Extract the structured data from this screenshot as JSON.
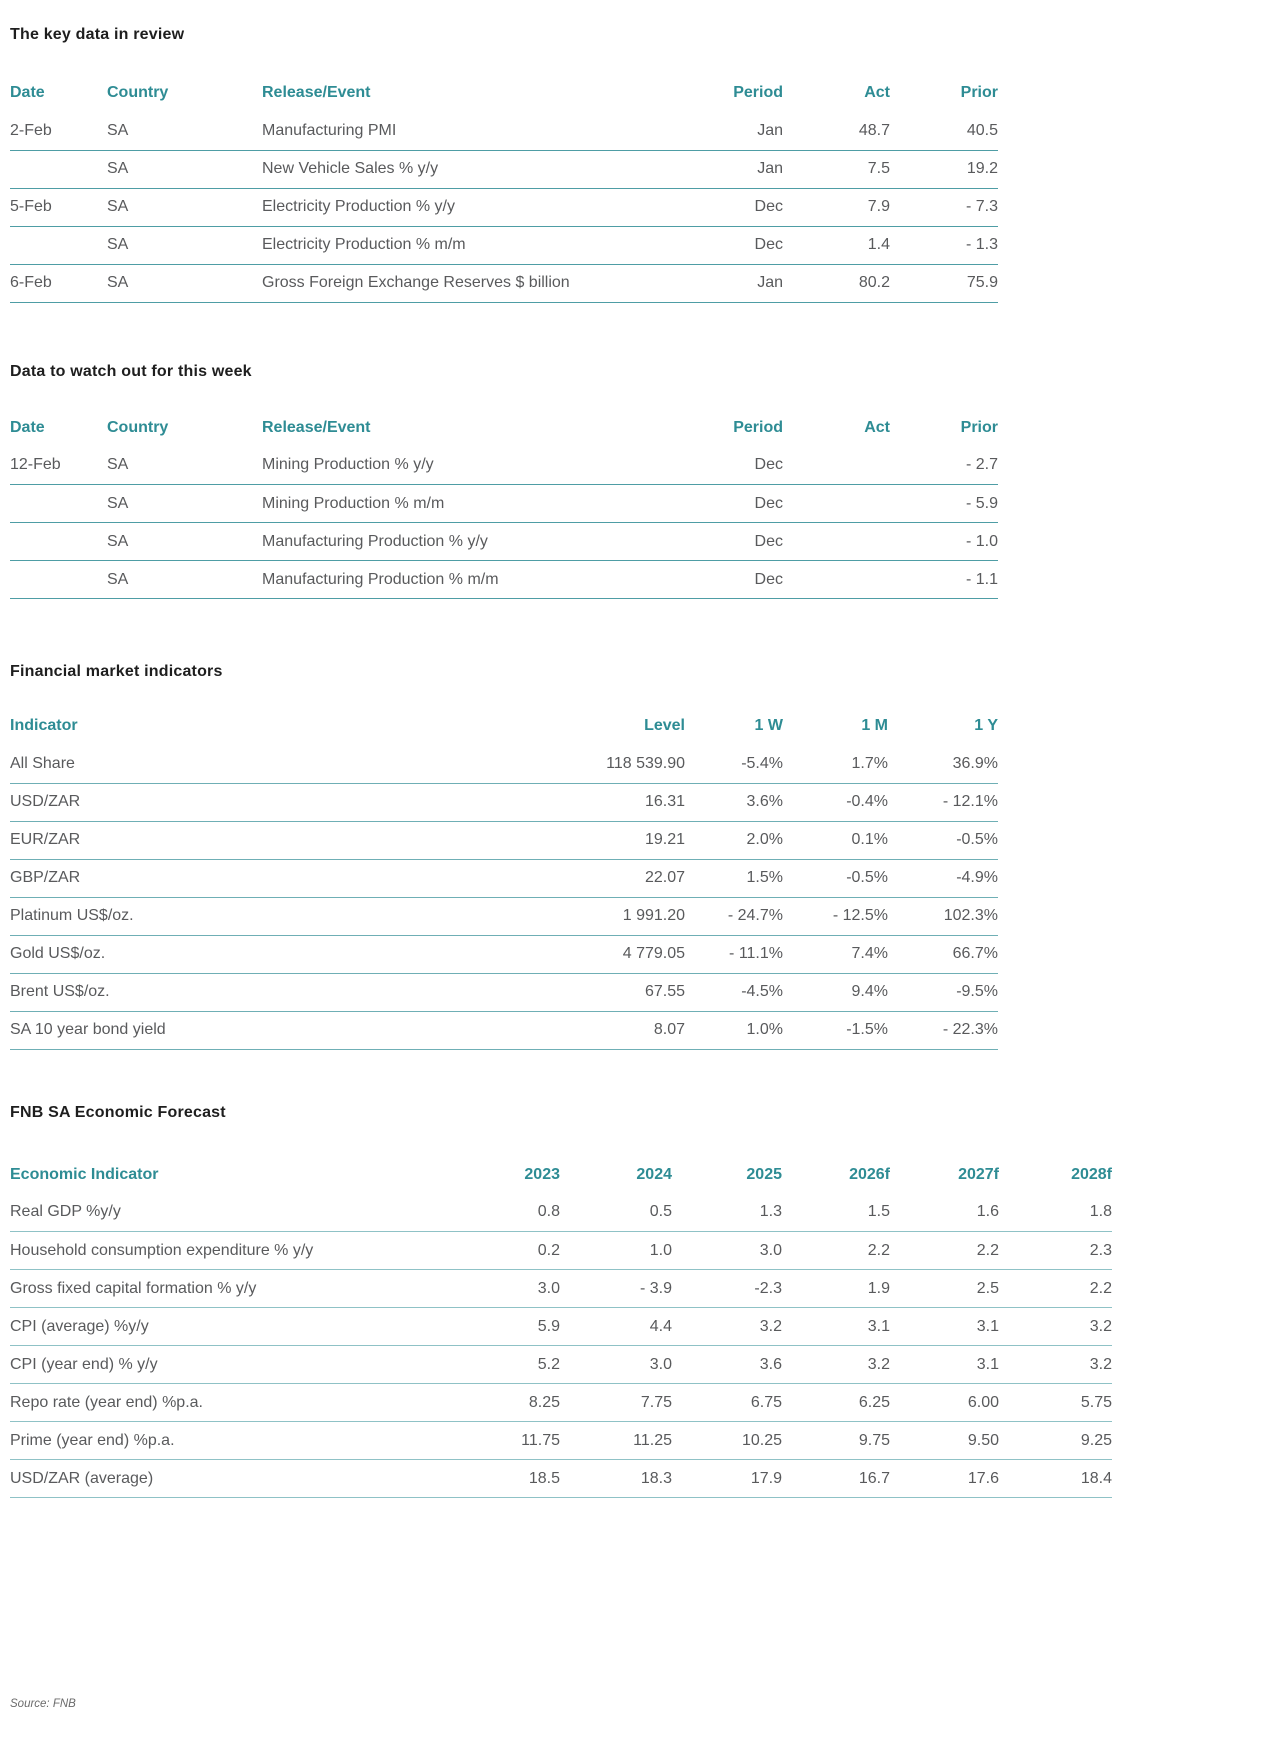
{
  "colors": {
    "accent_teal": "#2E8C94",
    "body_text": "#595A5C",
    "title_text": "#1E1E1E",
    "rule_teal": "#4E9DA5",
    "rule_teal_light": "#8FC2C6"
  },
  "tables": [
    {
      "title": "The key data in review",
      "columns": [
        "Date",
        "Country",
        "Release/Event",
        "Period",
        "Act",
        "Prior"
      ],
      "rows": [
        [
          "2-Feb",
          "SA",
          "Manufacturing PMI",
          "Jan",
          "48.7",
          "40.5"
        ],
        [
          "",
          "SA",
          "New Vehicle Sales % y/y",
          "Jan",
          "7.5",
          "19.2"
        ],
        [
          "5-Feb",
          "SA",
          "Electricity Production % y/y",
          "Dec",
          "7.9",
          "- 7.3"
        ],
        [
          "",
          "SA",
          "Electricity Production % m/m",
          "Dec",
          "1.4",
          "- 1.3"
        ],
        [
          "6-Feb",
          "SA",
          "Gross Foreign Exchange Reserves $ billion",
          "Jan",
          "80.2",
          "75.9"
        ]
      ]
    },
    {
      "title": "Data to watch out for this week",
      "columns": [
        "Date",
        "Country",
        "Release/Event",
        "Period",
        "Act",
        "Prior"
      ],
      "rows": [
        [
          "12-Feb",
          "SA",
          "Mining Production % y/y",
          "Dec",
          "",
          "- 2.7"
        ],
        [
          "",
          "SA",
          "Mining Production % m/m",
          "Dec",
          "",
          "- 5.9"
        ],
        [
          "",
          "SA",
          "Manufacturing Production % y/y",
          "Dec",
          "",
          "- 1.0"
        ],
        [
          "",
          "SA",
          "Manufacturing Production % m/m",
          "Dec",
          "",
          "- 1.1"
        ]
      ]
    },
    {
      "title": "Financial market indicators",
      "columns": [
        "Indicator",
        "Level",
        "1 W",
        "1 M",
        "1 Y"
      ],
      "rows": [
        [
          "All Share",
          "118 539.90",
          "-5.4%",
          "1.7%",
          "36.9%"
        ],
        [
          "USD/ZAR",
          "16.31",
          "3.6%",
          "-0.4%",
          "- 12.1%"
        ],
        [
          "EUR/ZAR",
          "19.21",
          "2.0%",
          "0.1%",
          "-0.5%"
        ],
        [
          "GBP/ZAR",
          "22.07",
          "1.5%",
          "-0.5%",
          "-4.9%"
        ],
        [
          "Platinum US$/oz.",
          "1 991.20",
          "- 24.7%",
          "- 12.5%",
          "102.3%"
        ],
        [
          "Gold US$/oz.",
          "4 779.05",
          "- 11.1%",
          "7.4%",
          "66.7%"
        ],
        [
          "Brent US$/oz.",
          "67.55",
          "-4.5%",
          "9.4%",
          "-9.5%"
        ],
        [
          "SA 10 year bond yield",
          "8.07",
          "1.0%",
          "-1.5%",
          "- 22.3%"
        ]
      ]
    },
    {
      "title": "FNB SA Economic Forecast",
      "columns": [
        "Economic Indicator",
        "2023",
        "2024",
        "2025",
        "2026f",
        "2027f",
        "2028f"
      ],
      "rows": [
        [
          "Real GDP %y/y",
          "0.8",
          "0.5",
          "1.3",
          "1.5",
          "1.6",
          "1.8"
        ],
        [
          "Household consumption expenditure % y/y",
          "0.2",
          "1.0",
          "3.0",
          "2.2",
          "2.2",
          "2.3"
        ],
        [
          "Gross fixed capital formation % y/y",
          "3.0",
          "- 3.9",
          "-2.3",
          "1.9",
          "2.5",
          "2.2"
        ],
        [
          "CPI (average) %y/y",
          "5.9",
          "4.4",
          "3.2",
          "3.1",
          "3.1",
          "3.2"
        ],
        [
          "CPI (year end) % y/y",
          "5.2",
          "3.0",
          "3.6",
          "3.2",
          "3.1",
          "3.2"
        ],
        [
          "Repo rate (year end) %p.a.",
          "8.25",
          "7.75",
          "6.75",
          "6.25",
          "6.00",
          "5.75"
        ],
        [
          "Prime (year end) %p.a.",
          "11.75",
          "11.25",
          "10.25",
          "9.75",
          "9.50",
          "9.25"
        ],
        [
          "USD/ZAR (average)",
          "18.5",
          "18.3",
          "17.9",
          "16.7",
          "17.6",
          "18.4"
        ]
      ]
    }
  ],
  "footer": {
    "source": "Source: FNB"
  }
}
